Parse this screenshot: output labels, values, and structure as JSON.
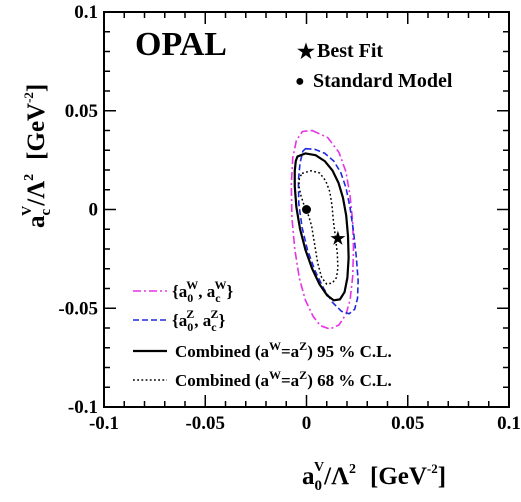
{
  "chart_data": {
    "type": "line",
    "title": "OPAL",
    "xlabel": {
      "base": "a",
      "sup": "V",
      "sub": "0",
      "rest": "/Λ",
      "pow": "2",
      "unit_open": "[GeV",
      "unit_exp": "-2",
      "unit_close": "]"
    },
    "ylabel": {
      "base": "a",
      "sup": "V",
      "sub": "c",
      "rest": "/Λ",
      "pow": "2",
      "unit_open": "[GeV",
      "unit_exp": "-2",
      "unit_close": "]"
    },
    "xlim": [
      -0.1,
      0.1
    ],
    "ylim": [
      -0.1,
      0.1
    ],
    "xticks": [
      {
        "value": -0.1,
        "label": "-0.1"
      },
      {
        "value": -0.05,
        "label": "-0.05"
      },
      {
        "value": 0,
        "label": "0"
      },
      {
        "value": 0.05,
        "label": "0.05"
      },
      {
        "value": 0.1,
        "label": "0.1"
      }
    ],
    "yticks": [
      {
        "value": -0.1,
        "label": "-0.1"
      },
      {
        "value": -0.05,
        "label": "-0.05"
      },
      {
        "value": 0,
        "label": "0"
      },
      {
        "value": 0.05,
        "label": "0.05"
      },
      {
        "value": 0.1,
        "label": "0.1"
      }
    ],
    "series": [
      {
        "id": "w",
        "color": "#e633e6",
        "dash": "8 3 2 3",
        "width": 1.6,
        "points": [
          [
            0.0028,
            0.04
          ],
          [
            0.0105,
            0.0364
          ],
          [
            0.016,
            0.029
          ],
          [
            0.0195,
            0.019
          ],
          [
            0.0215,
            0.007
          ],
          [
            0.0228,
            -0.006
          ],
          [
            0.0232,
            -0.02
          ],
          [
            0.0228,
            -0.034
          ],
          [
            0.0215,
            -0.046
          ],
          [
            0.0195,
            -0.053
          ],
          [
            0.016,
            -0.0585
          ],
          [
            0.0115,
            -0.0605
          ],
          [
            0.0068,
            -0.0588
          ],
          [
            0.0032,
            -0.054
          ],
          [
            -0.0005,
            -0.046
          ],
          [
            -0.0035,
            -0.035
          ],
          [
            -0.0058,
            -0.02
          ],
          [
            -0.0072,
            -0.004
          ],
          [
            -0.0075,
            0.012
          ],
          [
            -0.0068,
            0.026
          ],
          [
            -0.005,
            0.035
          ],
          [
            -0.002,
            0.0395
          ],
          [
            0.0028,
            0.04
          ]
        ]
      },
      {
        "id": "z",
        "color": "#1f2ae0",
        "dash": "6 3",
        "width": 1.6,
        "points": [
          [
            -0.0005,
            0.0308
          ],
          [
            0.004,
            0.0305
          ],
          [
            0.009,
            0.0285
          ],
          [
            0.0135,
            0.0245
          ],
          [
            0.017,
            0.0185
          ],
          [
            0.0195,
            0.011
          ],
          [
            0.0215,
            0.001
          ],
          [
            0.0232,
            -0.011
          ],
          [
            0.0246,
            -0.024
          ],
          [
            0.0255,
            -0.036
          ],
          [
            0.0252,
            -0.045
          ],
          [
            0.0238,
            -0.0505
          ],
          [
            0.021,
            -0.0528
          ],
          [
            0.0172,
            -0.0515
          ],
          [
            0.0128,
            -0.047
          ],
          [
            0.0085,
            -0.04
          ],
          [
            0.0042,
            -0.031
          ],
          [
            0.0005,
            -0.0205
          ],
          [
            -0.0022,
            -0.009
          ],
          [
            -0.0038,
            0.003
          ],
          [
            -0.004,
            0.0145
          ],
          [
            -0.0032,
            0.0235
          ],
          [
            -0.0018,
            0.0295
          ],
          [
            -0.0005,
            0.0308
          ]
        ]
      },
      {
        "id": "comb95",
        "color": "#000000",
        "dash": "",
        "width": 2.2,
        "points": [
          [
            -0.0045,
            0.0268
          ],
          [
            -0.0005,
            0.0284
          ],
          [
            0.0045,
            0.0275
          ],
          [
            0.009,
            0.0245
          ],
          [
            0.0128,
            0.0198
          ],
          [
            0.0158,
            0.0135
          ],
          [
            0.018,
            0.006
          ],
          [
            0.0196,
            -0.003
          ],
          [
            0.0205,
            -0.0135
          ],
          [
            0.0208,
            -0.0245
          ],
          [
            0.0202,
            -0.0345
          ],
          [
            0.0188,
            -0.0418
          ],
          [
            0.0165,
            -0.0455
          ],
          [
            0.0135,
            -0.046
          ],
          [
            0.0102,
            -0.0435
          ],
          [
            0.0065,
            -0.038
          ],
          [
            0.0028,
            -0.03
          ],
          [
            -0.0005,
            -0.0205
          ],
          [
            -0.0032,
            -0.0098
          ],
          [
            -0.005,
            0.0012
          ],
          [
            -0.0058,
            0.0118
          ],
          [
            -0.0058,
            0.0195
          ],
          [
            -0.0053,
            0.0245
          ],
          [
            -0.0045,
            0.0268
          ]
        ]
      },
      {
        "id": "comb68",
        "color": "#000000",
        "dash": "1.8 2.4",
        "width": 1.5,
        "points": [
          [
            -0.0022,
            0.0183
          ],
          [
            0.0022,
            0.0196
          ],
          [
            0.0065,
            0.0185
          ],
          [
            0.0095,
            0.0145
          ],
          [
            0.0115,
            0.009
          ],
          [
            0.0126,
            0.002
          ],
          [
            0.0133,
            -0.006
          ],
          [
            0.0143,
            -0.014
          ],
          [
            0.0152,
            -0.022
          ],
          [
            0.0155,
            -0.0295
          ],
          [
            0.0148,
            -0.0345
          ],
          [
            0.0128,
            -0.0372
          ],
          [
            0.01,
            -0.0378
          ],
          [
            0.0075,
            -0.0345
          ],
          [
            0.0055,
            -0.027
          ],
          [
            0.004,
            -0.0175
          ],
          [
            0.0025,
            -0.0082
          ],
          [
            0.0008,
            -0.0025
          ],
          [
            -0.001,
            0.0015
          ],
          [
            -0.0028,
            0.0072
          ],
          [
            -0.0038,
            0.012
          ],
          [
            -0.0035,
            0.016
          ],
          [
            -0.0022,
            0.0183
          ]
        ]
      }
    ],
    "markers": {
      "best_fit": {
        "x": 0.0155,
        "y": -0.0145,
        "symbol": "★",
        "label": "Best Fit"
      },
      "standard_model": {
        "x": 0.0,
        "y": 0.0,
        "symbol": "●",
        "label": "Standard Model"
      }
    },
    "legend": {
      "placement": "bottom-left",
      "items": [
        {
          "series": "w",
          "open": "{a",
          "sub1": "0",
          "sup1": "W",
          "mid": ", a",
          "sub2": "c",
          "sup2": "W",
          "close": "}"
        },
        {
          "series": "z",
          "open": "{a",
          "sub1": "0",
          "sup1": "Z",
          "mid": ", a",
          "sub2": "c",
          "sup2": "Z",
          "close": "}"
        },
        {
          "series": "comb95",
          "pre": "Combined (a",
          "sup_a": "W",
          "eq": "=a",
          "sup_b": "Z",
          "post": ") 95 % C.L."
        },
        {
          "series": "comb68",
          "pre": "Combined (a",
          "sup_a": "W",
          "eq": "=a",
          "sup_b": "Z",
          "post": ") 68 % C.L."
        }
      ]
    },
    "grid": false
  }
}
